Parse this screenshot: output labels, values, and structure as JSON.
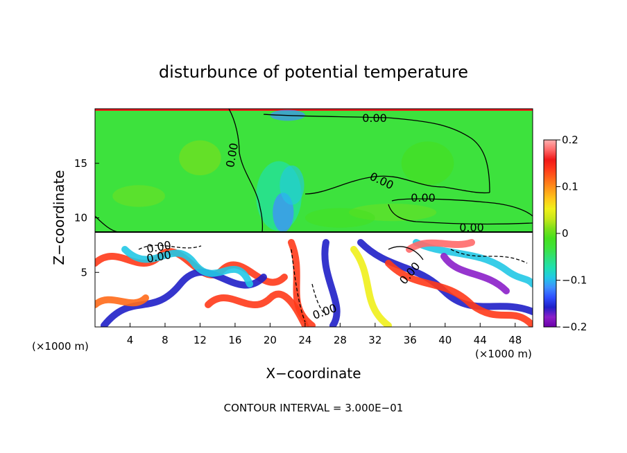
{
  "chart_data": {
    "type": "heatmap",
    "title": "disturbunce of potential temperature",
    "xlabel": "X−coordinate",
    "ylabel": "Z−coordinate",
    "x_unit_left": "(×1000 m)",
    "x_unit_right": "(×1000 m)",
    "xlim": [
      0,
      50
    ],
    "ylim": [
      0,
      20
    ],
    "x_ticks": [
      4,
      8,
      12,
      16,
      20,
      24,
      28,
      32,
      36,
      40,
      44,
      48
    ],
    "y_ticks": [
      5,
      10,
      15
    ],
    "colorbar": {
      "range": [
        -0.2,
        0.2
      ],
      "ticks": [
        0.2,
        0.1,
        0,
        -0.1,
        -0.2
      ],
      "tick_labels": [
        "0.2",
        "0.1",
        "0",
        "−0.1",
        "−0.2"
      ],
      "colors": [
        "#6a00a8",
        "#8b1fc9",
        "#1f1fc8",
        "#2f4fff",
        "#3f8fff",
        "#22c8e6",
        "#1fe0b0",
        "#2fe07a",
        "#3de23d",
        "#46e01e",
        "#7fe01a",
        "#c8e81a",
        "#f0f01a",
        "#ffc81a",
        "#ff9a1a",
        "#ff6a1a",
        "#ff3a1a",
        "#f01818",
        "#ff6a6a",
        "#ffb0b0"
      ]
    },
    "contour_labels": [
      "0.00",
      "0.00",
      "0.00",
      "0.00",
      "0.00",
      "0.00",
      "0.00",
      "0.00",
      "0.00"
    ],
    "footer": "CONTOUR INTERVAL = 3.000E−01",
    "colors": {
      "upper_field": "#3de23d",
      "lower_background": "#ffffff"
    }
  }
}
